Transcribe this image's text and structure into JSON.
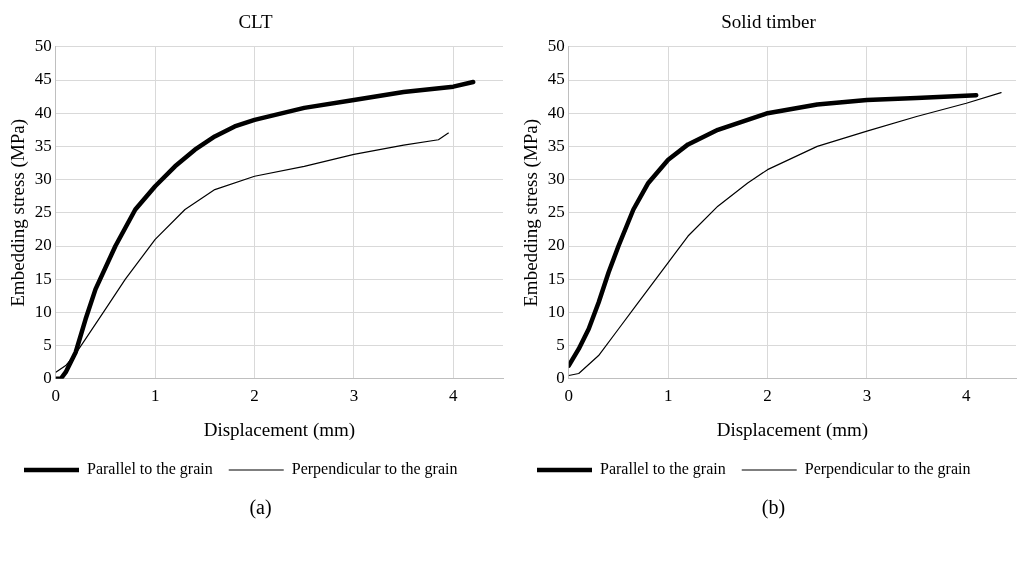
{
  "chart_data": [
    {
      "type": "line",
      "title": "CLT",
      "xlabel": "Displacement (mm)",
      "ylabel": "Embedding stress (MPa)",
      "xlim": [
        0,
        4.5
      ],
      "xticks": [
        0,
        1,
        2,
        3,
        4
      ],
      "ylim": [
        0,
        50
      ],
      "yticks": [
        0,
        5,
        10,
        15,
        20,
        25,
        30,
        35,
        40,
        45,
        50
      ],
      "grid": true,
      "legend": "bottom",
      "marker": "none",
      "annotations": [
        "(a)"
      ],
      "series": [
        {
          "name": "Parallel to the grain",
          "color": "#000000",
          "x": [
            0,
            0.05,
            0.1,
            0.2,
            0.3,
            0.4,
            0.6,
            0.8,
            1.0,
            1.2,
            1.4,
            1.6,
            1.8,
            2.0,
            2.5,
            3.0,
            3.5,
            4.0,
            4.2
          ],
          "values": [
            0,
            0,
            1,
            4,
            9,
            13.5,
            20,
            25.5,
            29,
            32,
            34.5,
            36.5,
            38,
            39,
            40.8,
            42,
            43.2,
            44,
            44.7
          ]
        },
        {
          "name": "Perpendicular to the grain",
          "color": "#000000",
          "x": [
            0,
            0.1,
            0.2,
            0.3,
            0.5,
            0.7,
            1.0,
            1.3,
            1.6,
            2.0,
            2.5,
            3.0,
            3.5,
            3.85,
            3.95
          ],
          "values": [
            1,
            2,
            3.8,
            6,
            10.5,
            15,
            21,
            25.5,
            28.5,
            30.5,
            32,
            33.8,
            35.2,
            36,
            37
          ]
        }
      ]
    },
    {
      "type": "line",
      "title": "Solid timber",
      "xlabel": "Displacement (mm)",
      "ylabel": "Embedding stress (MPa)",
      "xlim": [
        0,
        4.5
      ],
      "xticks": [
        0,
        1,
        2,
        3,
        4
      ],
      "ylim": [
        0,
        50
      ],
      "yticks": [
        0,
        5,
        10,
        15,
        20,
        25,
        30,
        35,
        40,
        45,
        50
      ],
      "grid": true,
      "legend": "bottom",
      "marker": "none",
      "annotations": [
        "(b)"
      ],
      "series": [
        {
          "name": "Parallel to the grain",
          "color": "#000000",
          "x": [
            0,
            0.1,
            0.2,
            0.3,
            0.4,
            0.5,
            0.65,
            0.8,
            1.0,
            1.2,
            1.5,
            2.0,
            2.5,
            3.0,
            3.5,
            4.1
          ],
          "values": [
            2,
            4.5,
            7.5,
            11.5,
            16,
            20,
            25.5,
            29.5,
            33,
            35.3,
            37.5,
            40,
            41.3,
            42,
            42.3,
            42.7
          ]
        },
        {
          "name": "Perpendicular to the grain",
          "color": "#000000",
          "x": [
            0,
            0.1,
            0.3,
            0.5,
            0.7,
            1.0,
            1.2,
            1.5,
            1.8,
            2.0,
            2.5,
            3.0,
            3.5,
            4.0,
            4.35
          ],
          "values": [
            0.5,
            0.8,
            3.5,
            7.5,
            11.5,
            17.5,
            21.5,
            26,
            29.5,
            31.5,
            35,
            37.3,
            39.5,
            41.5,
            43.1
          ]
        }
      ]
    }
  ]
}
